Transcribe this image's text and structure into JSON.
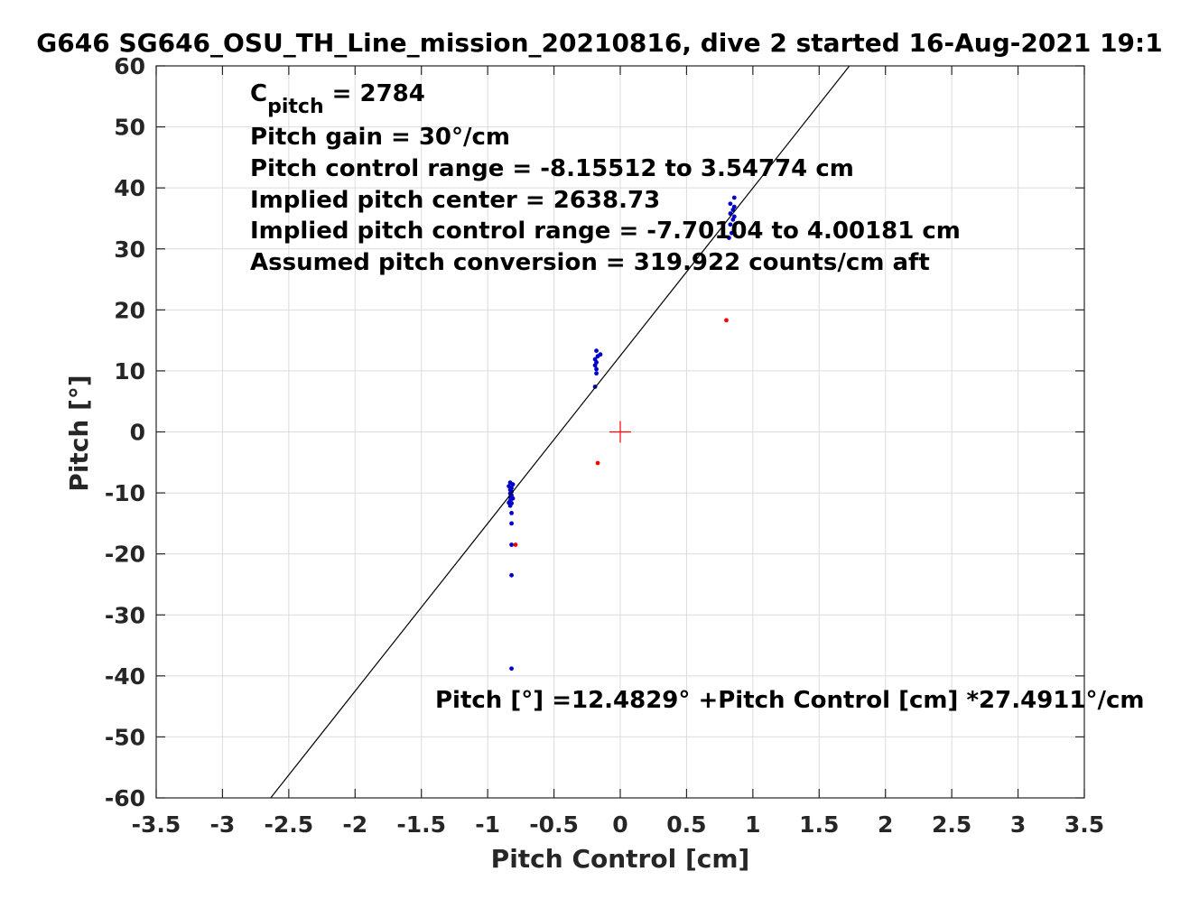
{
  "chart_data": {
    "type": "scatter",
    "title": "G646 SG646_OSU_TH_Line_mission_20210816, dive 2 started 16-Aug-2021 19:1",
    "xlabel": "Pitch Control [cm]",
    "ylabel": "Pitch [°]",
    "xlim": [
      -3.5,
      3.5
    ],
    "ylim": [
      -60,
      60
    ],
    "x_ticks": [
      "-3.5",
      "-3",
      "-2.5",
      "-2",
      "-1.5",
      "-1",
      "-0.5",
      "0",
      "0.5",
      "1",
      "1.5",
      "2",
      "2.5",
      "3",
      "3.5"
    ],
    "y_ticks": [
      "60",
      "50",
      "40",
      "30",
      "20",
      "10",
      "0",
      "-10",
      "-20",
      "-30",
      "-40",
      "-50",
      "-60"
    ],
    "grid": true,
    "annotations": {
      "c_pitch_symbol": "C",
      "c_pitch_sub": "pitch",
      "c_pitch_value": " = 2784",
      "pitch_gain": "Pitch gain = 30°/cm",
      "pitch_control_range": "Pitch control range = -8.15512 to 3.54774 cm",
      "implied_pitch_center": "Implied pitch center = 2638.73",
      "implied_pitch_control_range": "Implied pitch control range = -7.70104 to 4.00181 cm",
      "assumed_pitch_conversion": "Assumed pitch conversion = 319.922 counts/cm aft",
      "fit_equation": "Pitch [°] =12.4829° +Pitch Control [cm] *27.4911°/cm"
    },
    "series": [
      {
        "color": "#0000cc",
        "marker": "dot",
        "points": [
          [
            -0.82,
            -38.8
          ],
          [
            -0.82,
            -23.5
          ],
          [
            -0.82,
            -18.5
          ],
          [
            -0.82,
            -15.0
          ],
          [
            -0.82,
            -13.3
          ],
          [
            -0.83,
            -12.1
          ],
          [
            -0.82,
            -11.7
          ],
          [
            -0.83,
            -11.3
          ],
          [
            -0.82,
            -11.0
          ],
          [
            -0.83,
            -10.7
          ],
          [
            -0.82,
            -10.4
          ],
          [
            -0.83,
            -10.1
          ],
          [
            -0.82,
            -9.8
          ],
          [
            -0.83,
            -9.5
          ],
          [
            -0.82,
            -9.2
          ],
          [
            -0.84,
            -8.9
          ],
          [
            -0.81,
            -8.6
          ],
          [
            -0.83,
            -8.3
          ],
          [
            -0.81,
            -10.9
          ],
          [
            -0.84,
            -11.6
          ],
          [
            -0.19,
            7.4
          ],
          [
            -0.18,
            9.6
          ],
          [
            -0.18,
            10.3
          ],
          [
            -0.19,
            10.9
          ],
          [
            -0.18,
            11.4
          ],
          [
            -0.19,
            11.9
          ],
          [
            -0.17,
            12.4
          ],
          [
            -0.15,
            12.7
          ],
          [
            -0.18,
            13.3
          ],
          [
            0.82,
            31.8
          ],
          [
            0.84,
            32.6
          ],
          [
            0.86,
            33.4
          ],
          [
            0.83,
            34.0
          ],
          [
            0.85,
            34.8
          ],
          [
            0.86,
            35.3
          ],
          [
            0.83,
            35.8
          ],
          [
            0.85,
            36.4
          ],
          [
            0.86,
            36.9
          ],
          [
            0.83,
            37.4
          ],
          [
            0.86,
            38.4
          ]
        ]
      },
      {
        "color": "#ff0000",
        "marker": "dot",
        "points": [
          [
            -0.79,
            -18.5
          ],
          [
            -0.17,
            -5.1
          ],
          [
            0.8,
            18.3
          ]
        ]
      },
      {
        "color": "#ff0000",
        "marker": "plus",
        "points": [
          [
            0,
            0
          ]
        ]
      },
      {
        "color": "#000000",
        "type": "line",
        "intercept": 12.4829,
        "slope": 27.4911
      }
    ]
  }
}
